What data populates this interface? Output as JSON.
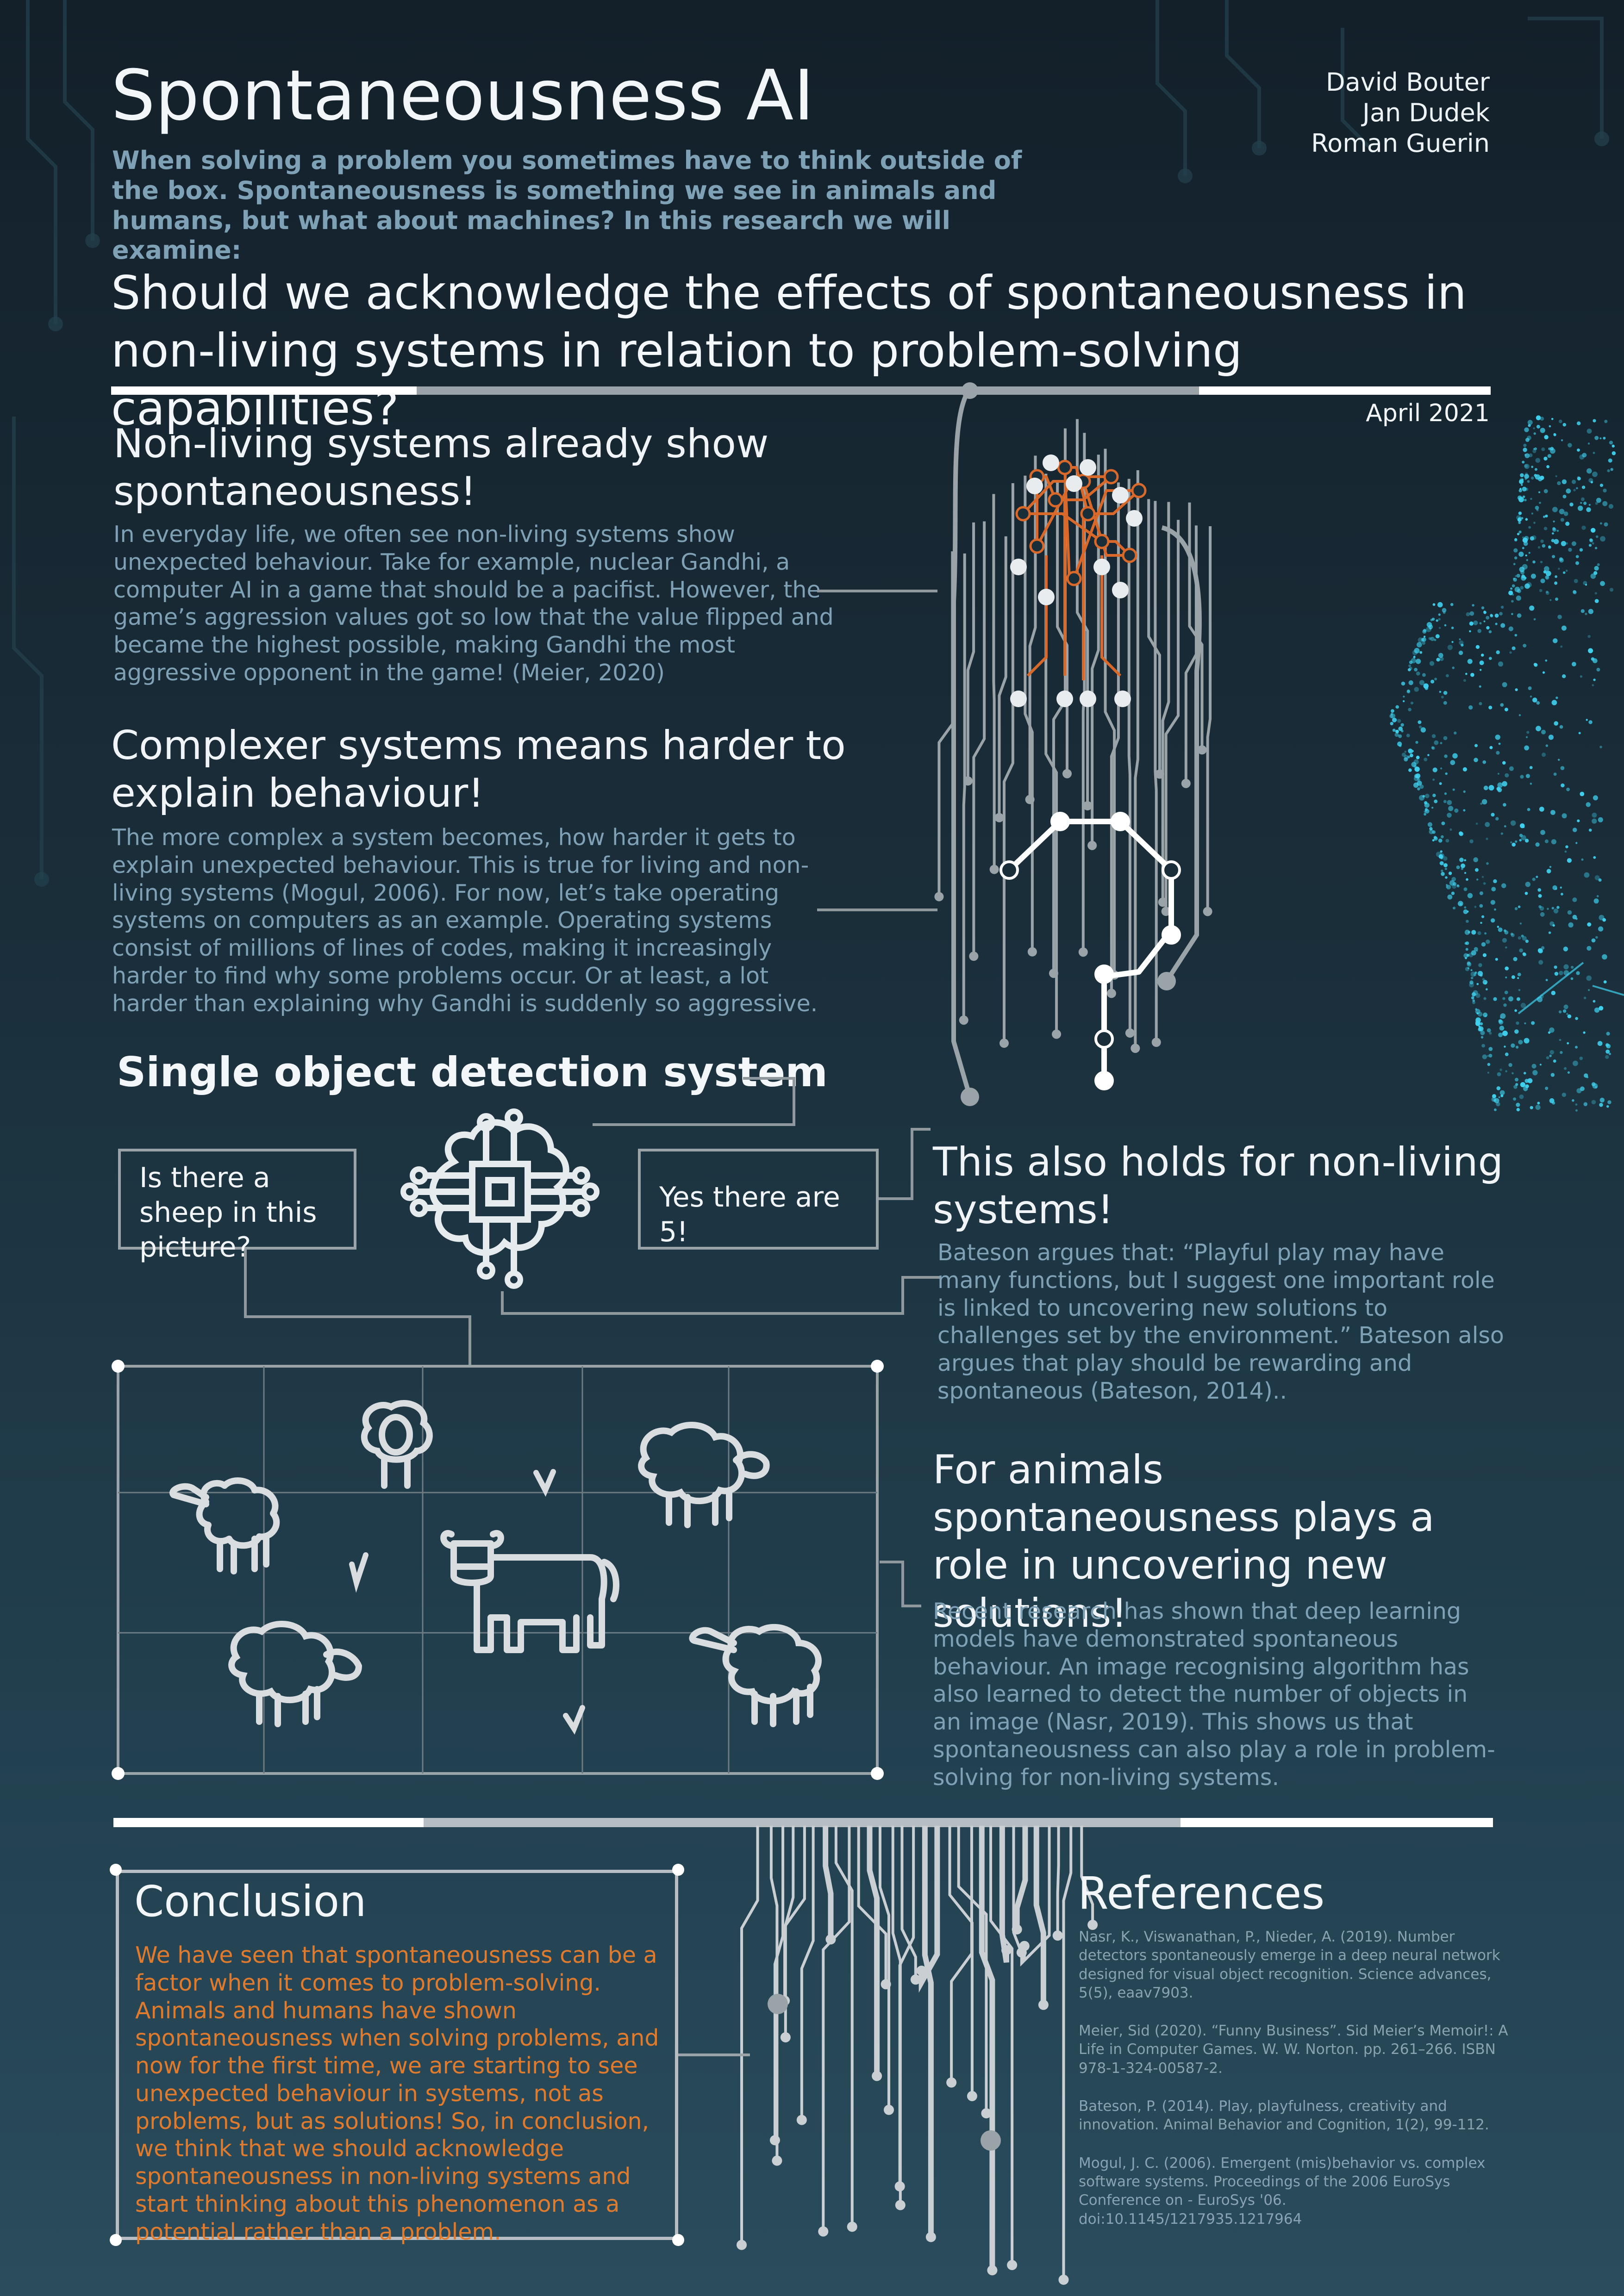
{
  "header": {
    "title": "Spontaneousness AI",
    "authors": [
      "David Bouter",
      "Jan Dudek",
      "Roman Guerin"
    ],
    "intro": "When solving a problem you sometimes have to think outside of the box. Spontaneousness is something we see in animals and humans, but what about machines? In this research we will examine:",
    "question": "Should we acknowledge the effects of spontaneousness in non-living systems in relation to problem-solving capabilities?",
    "date": "April 2021"
  },
  "sections": {
    "non_living": {
      "heading": "Non-living systems already show spontaneousness!",
      "text": "In everyday life, we often see non-living systems show unexpected behaviour. Take for example, nuclear Gandhi, a computer AI in a game that should be a pacifist. However, the game’s aggression values got so low that the value flipped and became the highest possible, making Gandhi the most aggressive opponent in the game! (Meier, 2020)"
    },
    "complexer": {
      "heading": "Complexer systems means harder to explain behaviour!",
      "text": "The more complex a system becomes, how harder it gets to explain unexpected behaviour. This is true for living and non-living systems (Mogul, 2006). For now, let’s take operating systems on computers as an example. Operating systems consist of millions of lines of codes, making it increasingly harder to find why some problems occur. Or at least, a lot harder than explaining why Gandhi is suddenly so aggressive."
    },
    "detection": {
      "title": "Single object detection system",
      "question_box": "Is there a sheep in this picture?",
      "answer_box": "Yes there are 5!"
    },
    "also_holds": {
      "heading": "This also holds for non-living systems!",
      "text": "Bateson argues that: “Playful play may have many functions, but I suggest one important role is linked to uncovering new solutions to challenges set by the environment.” Bateson also argues that play should be rewarding and spontaneous (Bateson, 2014).."
    },
    "animals": {
      "heading": "For animals spontaneousness plays a role in uncovering new solutions!",
      "text": "Recent research has shown that deep learning models have demonstrated spontaneous behaviour. An image recognising algorithm has also learned to detect the number of objects in an image (Nasr, 2019). This shows us that spontaneousness can also play a role in problem-solving for non-living systems."
    }
  },
  "conclusion": {
    "title": "Conclusion",
    "text": "We have seen that spontaneousness can be a factor when it comes to problem-solving. Animals and humans have shown spontaneousness when solving problems, and now for the first time, we are starting to see unexpected behaviour in systems, not as problems, but as solutions! So, in conclusion, we think that we should acknowledge spontaneousness in non-living systems and start thinking about this phenomenon as a potential rather than a problem."
  },
  "references": {
    "title": "References",
    "items": [
      "Nasr, K., Viswanathan, P., Nieder, A. (2019). Number detectors spontaneously emerge in a deep neural network designed for visual object recognition. Science advances, 5(5), eaav7903.",
      "Meier, Sid (2020). “Funny Business”. Sid Meier’s Memoir!: A Life in Computer Games. W. W. Norton. pp. 261–266. ISBN 978-1-324-00587-2.",
      "Bateson, P. (2014). Play, playfulness, creativity and innovation. Animal Behavior and Cognition, 1(2), 99-112.",
      "Mogul, J. C. (2006). Emergent (mis)behavior vs. complex software systems. Proceedings of the 2006 EuroSys Conference on - EuroSys '06. doi:10.1145/1217935.1217964"
    ]
  },
  "colors": {
    "background": "#1a2e3a",
    "accent_text": "#7fa1b5",
    "conclusion_text": "#e07b2e",
    "circuit_orange": "#d9692a",
    "glow_cyan": "#3fd2f0"
  },
  "icons": [
    "circuit-brain-icon",
    "chip-brain-icon",
    "sheep-icon",
    "cow-icon",
    "face-particles-graphic"
  ]
}
